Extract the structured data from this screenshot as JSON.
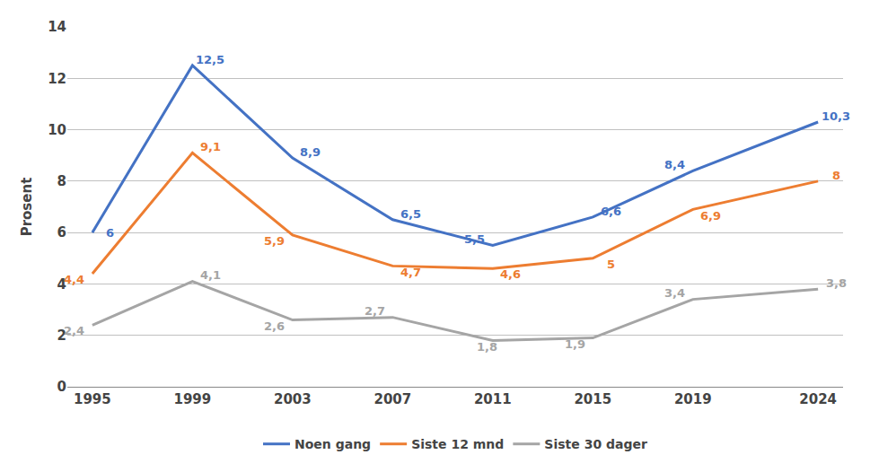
{
  "chart_data": {
    "type": "line",
    "x": [
      1995,
      1999,
      2003,
      2007,
      2011,
      2015,
      2019,
      2024
    ],
    "xlim": [
      1994,
      2025
    ],
    "xticks": [
      1995,
      1999,
      2003,
      2007,
      2011,
      2015,
      2019,
      2024
    ],
    "ylabel": "Prosent",
    "ylim": [
      0,
      14
    ],
    "yticks": [
      0,
      2,
      4,
      6,
      8,
      10,
      12,
      14
    ],
    "grid": true,
    "legend": "bottom",
    "data_labels": true,
    "series": [
      {
        "name": "Noen gang",
        "color": "#4472C4",
        "values": [
          6.0,
          12.5,
          8.9,
          6.5,
          5.5,
          6.6,
          8.4,
          10.3
        ],
        "value_labels": [
          "6",
          "12,5",
          "8,9",
          "6,5",
          "5,5",
          "6,6",
          "8,4",
          "10,3"
        ]
      },
      {
        "name": "Siste 12 mnd",
        "color": "#ED7D31",
        "values": [
          4.4,
          9.1,
          5.9,
          4.7,
          4.6,
          5.0,
          6.9,
          8.0
        ],
        "value_labels": [
          "4,4",
          "9,1",
          "5,9",
          "4,7",
          "4,6",
          "5",
          "6,9",
          "8"
        ]
      },
      {
        "name": "Siste 30 dager",
        "color": "#A5A5A5",
        "values": [
          2.4,
          4.1,
          2.6,
          2.7,
          1.8,
          1.9,
          3.4,
          3.8
        ],
        "value_labels": [
          "2,4",
          "4,1",
          "2,6",
          "2,7",
          "1,8",
          "1,9",
          "3,4",
          "3,8"
        ]
      }
    ]
  }
}
